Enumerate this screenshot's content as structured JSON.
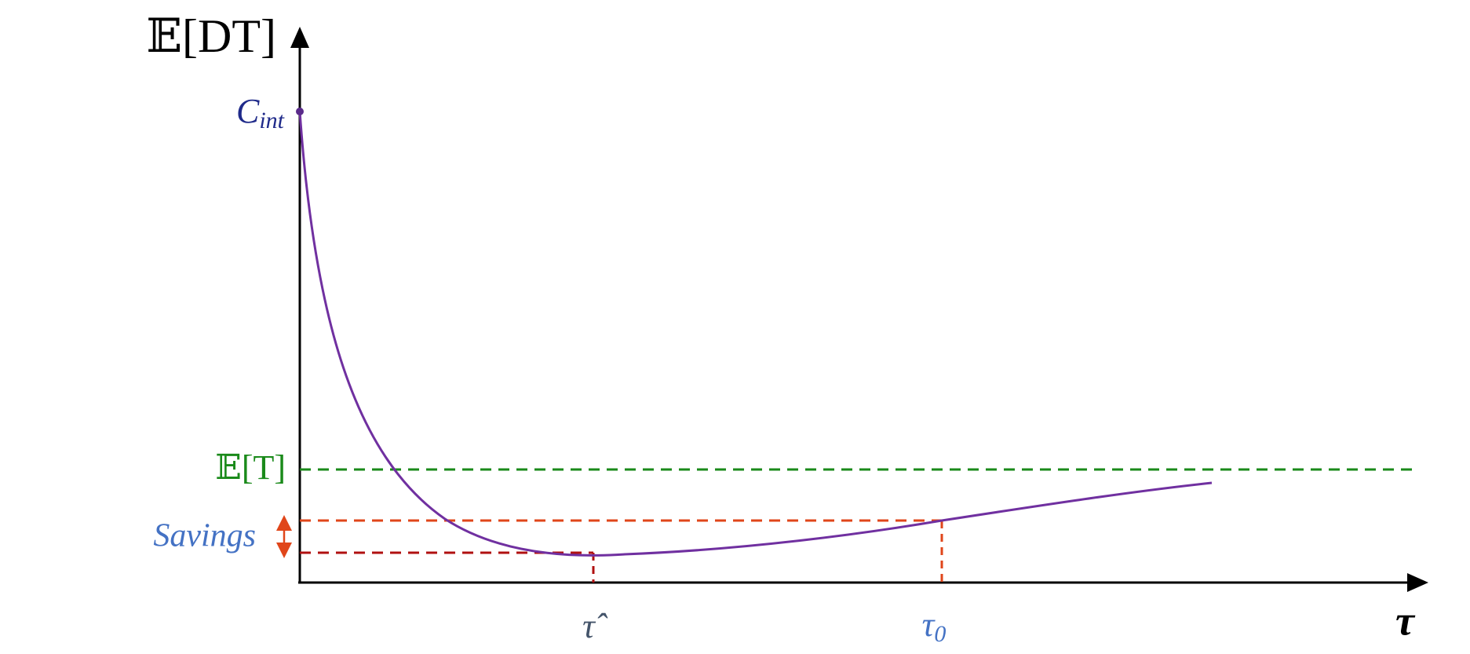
{
  "axes": {
    "y_label": "𝔼[DT]",
    "x_label": "τ"
  },
  "labels": {
    "c_int": {
      "base": "C",
      "sub": "int"
    },
    "expected_t": "𝔼[T]",
    "savings": "Savings",
    "tau_hat": "τ̂",
    "tau_0": {
      "base": "τ",
      "sub": "0"
    }
  }
}
